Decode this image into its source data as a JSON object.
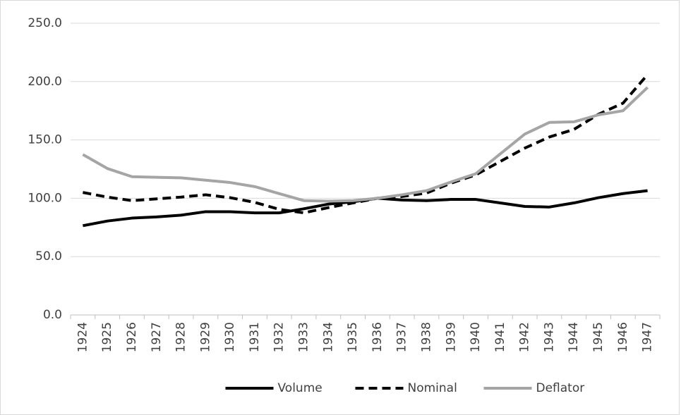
{
  "chart_data": {
    "type": "line",
    "categories": [
      "1924",
      "1925",
      "1926",
      "1927",
      "1928",
      "1929",
      "1930",
      "1931",
      "1932",
      "1933",
      "1934",
      "1935",
      "1936",
      "1937",
      "1938",
      "1939",
      "1940",
      "1941",
      "1942",
      "1943",
      "1944",
      "1945",
      "1946",
      "1947"
    ],
    "series": [
      {
        "name": "Volume",
        "color": "#000000",
        "line_style": "solid",
        "values": [
          76.5,
          80.5,
          83,
          84,
          85.5,
          88.5,
          88.5,
          87.5,
          87.5,
          91,
          95,
          97,
          100,
          98.5,
          98,
          99,
          99,
          96,
          93,
          92.5,
          96,
          100.5,
          104,
          106.5
        ]
      },
      {
        "name": "Nominal",
        "color": "#000000",
        "line_style": "dashed",
        "values": [
          105,
          101,
          98,
          99.5,
          101,
          103,
          100.5,
          96.5,
          90.5,
          87.5,
          92,
          96,
          100,
          101.5,
          104.5,
          113,
          120,
          131.5,
          143,
          152.5,
          159,
          172,
          181.5,
          206
        ]
      },
      {
        "name": "Deflator",
        "color": "#a5a5a5",
        "line_style": "solid",
        "values": [
          137.5,
          125.5,
          118.5,
          118,
          117.5,
          115.5,
          113.5,
          110,
          104,
          98,
          97.5,
          98,
          100,
          103,
          106.5,
          114,
          121,
          138,
          155,
          165,
          165.5,
          171.5,
          175,
          195
        ]
      }
    ],
    "ylim": [
      0,
      250
    ],
    "yticks": [
      {
        "value": 0,
        "label": "0.0"
      },
      {
        "value": 50,
        "label": "50.0"
      },
      {
        "value": 100,
        "label": "100.0"
      },
      {
        "value": 150,
        "label": "150.0"
      },
      {
        "value": 200,
        "label": "200.0"
      },
      {
        "value": 250,
        "label": "250.0"
      }
    ],
    "grid": true,
    "legend": "bottom"
  }
}
